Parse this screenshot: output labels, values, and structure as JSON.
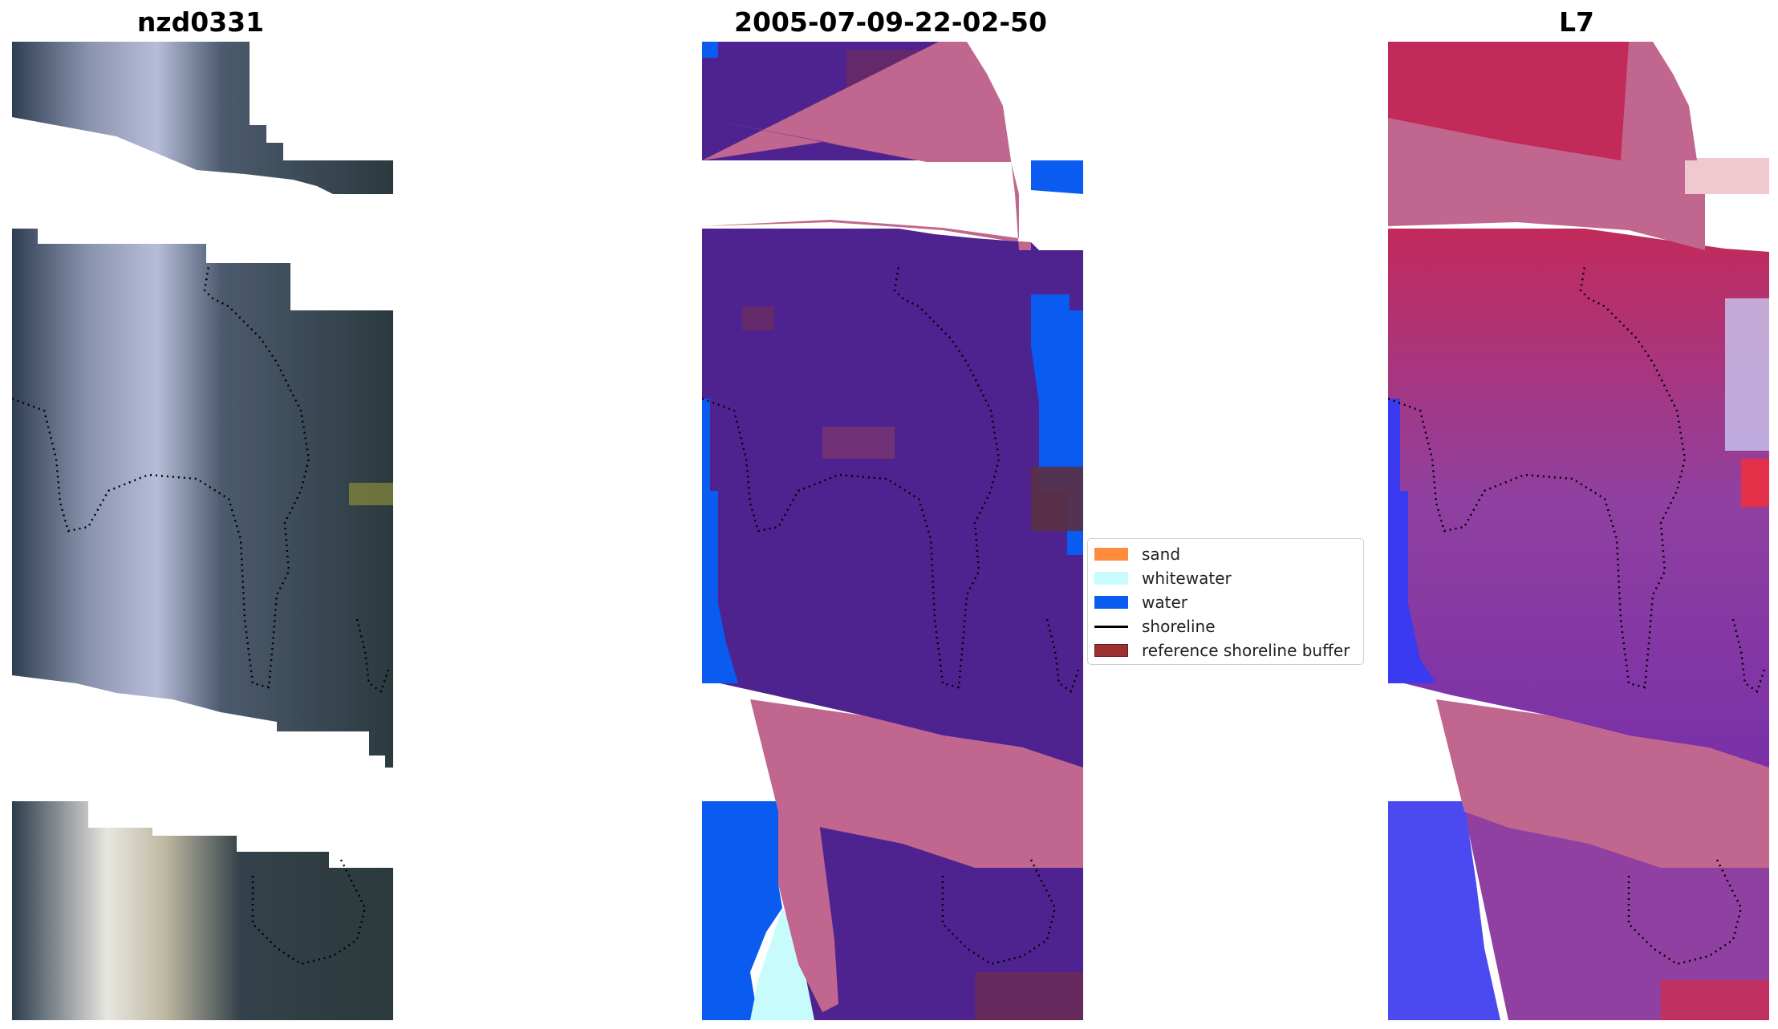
{
  "panels": [
    {
      "title": "nzd0331"
    },
    {
      "title": "2005-07-09-22-02-50"
    },
    {
      "title": "L7"
    }
  ],
  "legend": [
    {
      "label": "sand",
      "color": "#ff8c3c",
      "kind": "patch"
    },
    {
      "label": "whitewater",
      "color": "#c8fcfc",
      "kind": "patch"
    },
    {
      "label": "water",
      "color": "#0a5cf0",
      "kind": "patch"
    },
    {
      "label": "shoreline",
      "color": "#000000",
      "kind": "line"
    },
    {
      "label": "reference shoreline buffer",
      "color": "#9b3030",
      "kind": "patch"
    }
  ],
  "colors": {
    "cloud_mask": "#c0668f",
    "land_class": "#4e2390",
    "water_class": "#0a5cf0",
    "whitewater_class": "#c8fcfc",
    "buffer_class": "#7a2c55"
  }
}
